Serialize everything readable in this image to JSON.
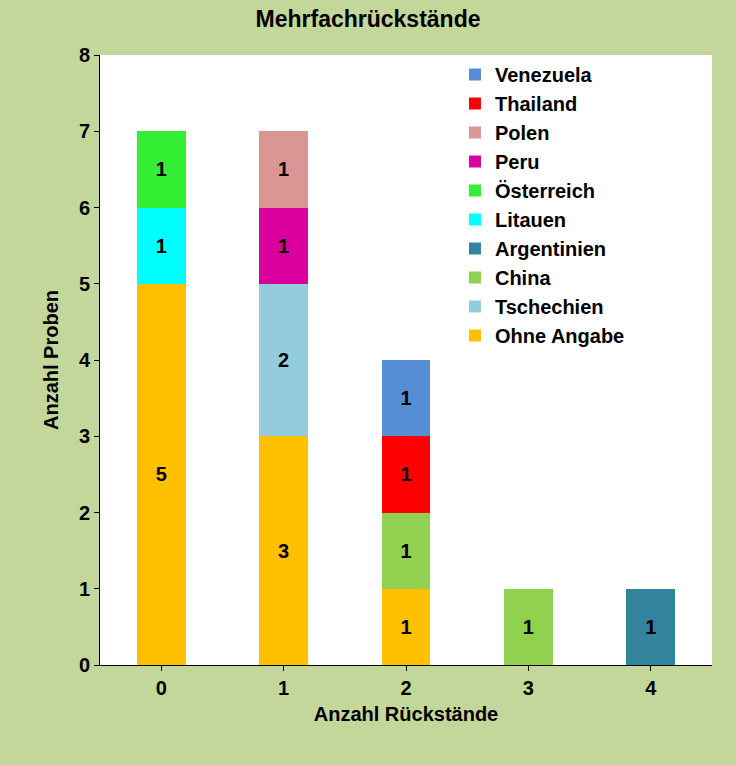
{
  "chart_data": {
    "type": "bar",
    "title": "Mehrfachrückstände",
    "x_label": "Anzahl Rückstände",
    "y_label": "Anzahl Proben",
    "categories": [
      "0",
      "1",
      "2",
      "3",
      "4"
    ],
    "series": [
      {
        "name": "Ohne Angabe",
        "color": "#ffc000",
        "values": [
          5,
          3,
          1,
          null,
          null
        ]
      },
      {
        "name": "Tschechien",
        "color": "#93cddd",
        "values": [
          null,
          2,
          null,
          null,
          null
        ]
      },
      {
        "name": "China",
        "color": "#92d050",
        "values": [
          null,
          null,
          1,
          1,
          null
        ]
      },
      {
        "name": "Argentinien",
        "color": "#31849b",
        "values": [
          null,
          null,
          null,
          null,
          1
        ]
      },
      {
        "name": "Litauen",
        "color": "#00ffff",
        "values": [
          1,
          null,
          null,
          null,
          null
        ]
      },
      {
        "name": "Österreich",
        "color": "#33ee33",
        "values": [
          1,
          null,
          null,
          null,
          null
        ]
      },
      {
        "name": "Peru",
        "color": "#d9009e",
        "values": [
          null,
          1,
          null,
          null,
          null
        ]
      },
      {
        "name": "Polen",
        "color": "#d99694",
        "values": [
          null,
          1,
          null,
          null,
          null
        ]
      },
      {
        "name": "Thailand",
        "color": "#ff0000",
        "values": [
          null,
          null,
          1,
          null,
          null
        ]
      },
      {
        "name": "Venezuela",
        "color": "#558ed5",
        "values": [
          null,
          null,
          1,
          null,
          null
        ]
      }
    ],
    "ylim": [
      0,
      8
    ],
    "yticks": [
      0,
      1,
      2,
      3,
      4,
      5,
      6,
      7,
      8
    ],
    "stacked": true,
    "data_labels": true,
    "legend": "upper right",
    "grid": false
  }
}
